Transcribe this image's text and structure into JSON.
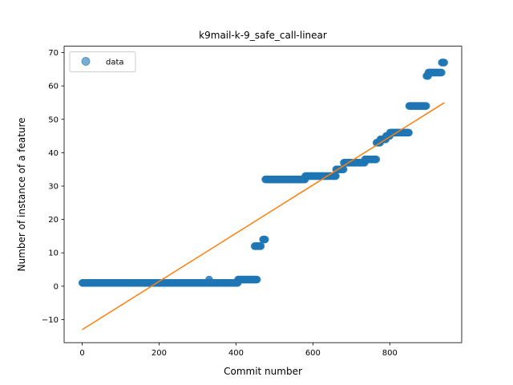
{
  "chart_data": {
    "type": "scatter",
    "title": "k9mail-k-9_safe_call-linear",
    "xlabel": "Commit number",
    "ylabel": "Number of instance of a feature",
    "xlim": [
      -47,
      987
    ],
    "ylim": [
      -16.9,
      71.9
    ],
    "xticks": [
      0,
      200,
      400,
      600,
      800
    ],
    "yticks": [
      -10,
      0,
      10,
      20,
      30,
      40,
      50,
      60,
      70
    ],
    "grid": false,
    "legend": {
      "location": "upper-left",
      "entries": [
        "data"
      ]
    },
    "colors": {
      "data": "#1f77b4",
      "fit": "#ff7f0e"
    },
    "series": [
      {
        "name": "data",
        "kind": "scatter",
        "segments": [
          {
            "x_start": 0,
            "x_end": 405,
            "y": 1
          },
          {
            "x_start": 330,
            "x_end": 330,
            "y": 2
          },
          {
            "x_start": 405,
            "x_end": 455,
            "y": 2
          },
          {
            "x_start": 448,
            "x_end": 465,
            "y": 12
          },
          {
            "x_start": 470,
            "x_end": 476,
            "y": 14
          },
          {
            "x_start": 476,
            "x_end": 580,
            "y": 32
          },
          {
            "x_start": 580,
            "x_end": 660,
            "y": 33
          },
          {
            "x_start": 660,
            "x_end": 680,
            "y": 35
          },
          {
            "x_start": 680,
            "x_end": 690,
            "y": 37
          },
          {
            "x_start": 690,
            "x_end": 735,
            "y": 37
          },
          {
            "x_start": 735,
            "x_end": 765,
            "y": 38
          },
          {
            "x_start": 765,
            "x_end": 775,
            "y": 43
          },
          {
            "x_start": 775,
            "x_end": 790,
            "y": 44
          },
          {
            "x_start": 790,
            "x_end": 800,
            "y": 45
          },
          {
            "x_start": 800,
            "x_end": 850,
            "y": 46
          },
          {
            "x_start": 850,
            "x_end": 895,
            "y": 54
          },
          {
            "x_start": 895,
            "x_end": 900,
            "y": 63
          },
          {
            "x_start": 900,
            "x_end": 935,
            "y": 64
          },
          {
            "x_start": 935,
            "x_end": 942,
            "y": 67
          }
        ]
      },
      {
        "name": "",
        "kind": "line",
        "x": [
          0,
          942
        ],
        "y": [
          -13,
          55
        ]
      }
    ]
  }
}
